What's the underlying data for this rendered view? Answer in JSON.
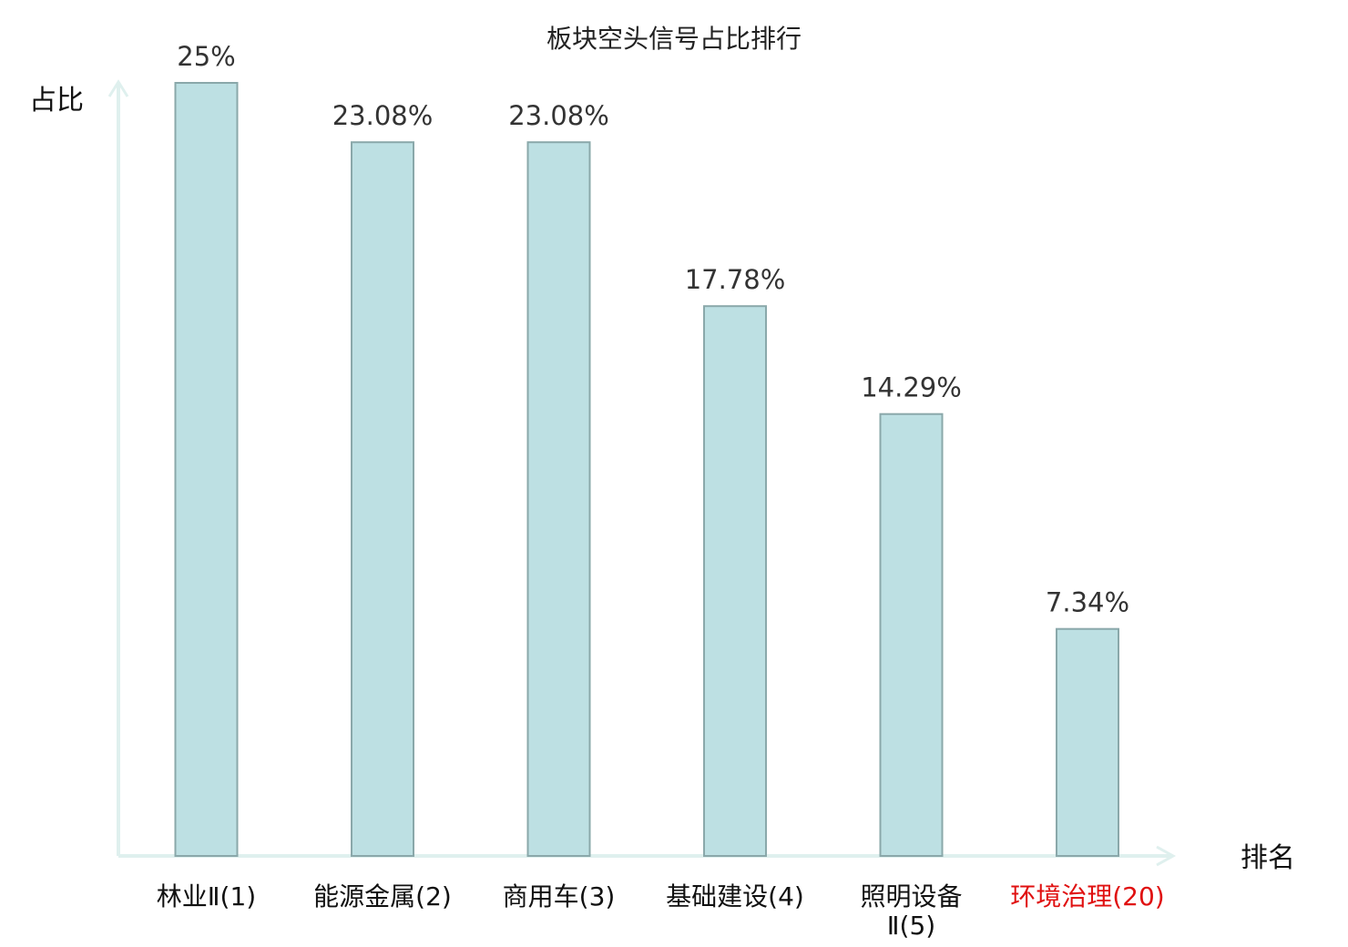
{
  "chart_data": {
    "type": "bar",
    "title": "板块空头信号占比排行",
    "ylabel": "占比",
    "xlabel": "排名",
    "categories": [
      {
        "name": "林业Ⅱ",
        "rank": "(1)",
        "lines": [
          "林业Ⅱ(1)"
        ],
        "highlight": false
      },
      {
        "name": "能源金属",
        "rank": "(2)",
        "lines": [
          "能源金属(2)"
        ],
        "highlight": false
      },
      {
        "name": "商用车",
        "rank": "(3)",
        "lines": [
          "商用车(3)"
        ],
        "highlight": false
      },
      {
        "name": "基础建设",
        "rank": "(4)",
        "lines": [
          "基础建设(4)"
        ],
        "highlight": false
      },
      {
        "name": "照明设备Ⅱ",
        "rank": "(5)",
        "lines": [
          "照明设备",
          "Ⅱ(5)"
        ],
        "highlight": false
      },
      {
        "name": "环境治理",
        "rank": "(20)",
        "lines": [
          "环境治理(20)"
        ],
        "highlight": true
      }
    ],
    "values": [
      25,
      23.08,
      23.08,
      17.78,
      14.29,
      7.34
    ],
    "value_labels": [
      "25%",
      "23.08%",
      "23.08%",
      "17.78%",
      "14.29%",
      "7.34%"
    ],
    "ylim": [
      0,
      25
    ],
    "grid": false,
    "legend": "none",
    "colors": {
      "bar_fill": "#bde0e3",
      "bar_stroke": "#8aa8aa",
      "axis": "#dff0ee",
      "label_default": "#111111",
      "label_highlight": "#e01010",
      "rank_default": "#333333"
    }
  }
}
